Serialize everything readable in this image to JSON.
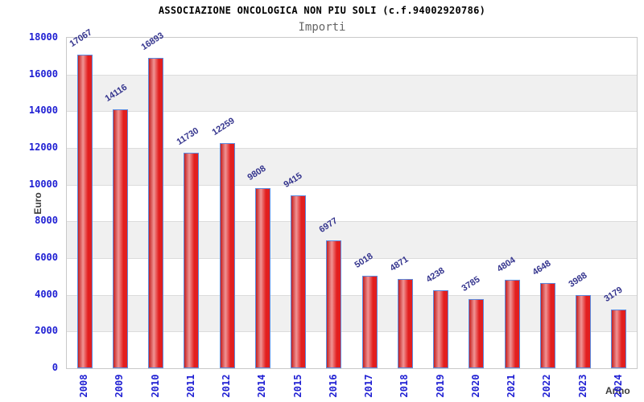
{
  "chart_data": {
    "type": "bar",
    "title": "ASSOCIAZIONE ONCOLOGICA NON PIU SOLI (c.f.94002920786)",
    "subtitle": "Importi",
    "xlabel": "Anno",
    "ylabel": "Euro",
    "categories": [
      "2008",
      "2009",
      "2010",
      "2011",
      "2012",
      "2014",
      "2015",
      "2016",
      "2017",
      "2018",
      "2019",
      "2020",
      "2021",
      "2022",
      "2023",
      "2024"
    ],
    "values": [
      17067,
      14116,
      16893,
      11730,
      12259,
      9808,
      9415,
      6977,
      5018,
      4871,
      4238,
      3785,
      4804,
      4648,
      3988,
      3179
    ],
    "ylim": [
      0,
      18000
    ],
    "ytick_step": 2000,
    "grid": "horizontal gridlines with alternating gray bands every 2000",
    "legend": "none",
    "colors": {
      "bar_edge": "#c42020",
      "bar_highlight": "#f09494",
      "bar_fill": "#e21f1f",
      "bar_border": "#5b8be0",
      "tick_label": "#1f1fd3",
      "value_label": "#35358e",
      "band": "#f0f0f0",
      "gridline": "#dcdcdc",
      "plot_border": "#c9c9c9",
      "title": "#000000",
      "subtitle": "#666666",
      "axis_title": "#3c3c3c"
    }
  }
}
